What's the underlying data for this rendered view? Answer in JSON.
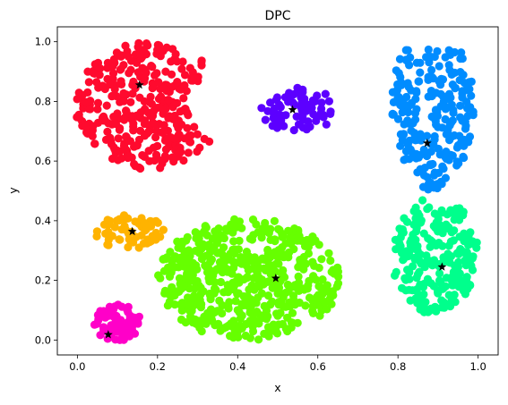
{
  "chart_data": {
    "type": "scatter",
    "title": "DPC",
    "xlabel": "x",
    "ylabel": "y",
    "xlim": [
      -0.05,
      1.05
    ],
    "ylim": [
      -0.05,
      1.05
    ],
    "x_ticks": [
      "0.0",
      "0.2",
      "0.4",
      "0.6",
      "0.8",
      "1.0"
    ],
    "y_ticks": [
      "0.0",
      "0.2",
      "0.4",
      "0.6",
      "0.8",
      "1.0"
    ],
    "grid": false,
    "legend": "none",
    "centers_marker": "black-star",
    "series": [
      {
        "color": "#ff0a2e",
        "shape": "half-disc-open-right",
        "center": [
          0.155,
          0.855
        ],
        "extent": {
          "x": [
            -0.005,
            0.375
          ],
          "y": [
            0.57,
            1.0
          ]
        },
        "count": 340
      },
      {
        "color": "#5c00ff",
        "shape": "ellipse",
        "center": [
          0.537,
          0.772
        ],
        "extent": {
          "x": [
            0.45,
            0.645
          ],
          "y": [
            0.695,
            0.85
          ]
        },
        "count": 70
      },
      {
        "color": "#008cff",
        "shape": "pear-narrowing-down",
        "center": [
          0.873,
          0.66
        ],
        "extent": {
          "x": [
            0.78,
            0.99
          ],
          "y": [
            0.5,
            0.975
          ]
        },
        "count": 230
      },
      {
        "color": "#ffb300",
        "shape": "ellipse",
        "center": [
          0.137,
          0.364
        ],
        "extent": {
          "x": [
            0.045,
            0.215
          ],
          "y": [
            0.3,
            0.43
          ]
        },
        "count": 60
      },
      {
        "color": "#66ff00",
        "shape": "ellipse",
        "center": [
          0.495,
          0.207
        ],
        "extent": {
          "x": [
            0.2,
            0.655
          ],
          "y": [
            0.0,
            0.41
          ]
        },
        "count": 540
      },
      {
        "color": "#00ff8c",
        "shape": "ellipse",
        "center": [
          0.91,
          0.245
        ],
        "extent": {
          "x": [
            0.785,
            1.0
          ],
          "y": [
            0.085,
            0.48
          ]
        },
        "count": 230
      },
      {
        "color": "#ff00c8",
        "shape": "ellipse",
        "center": [
          0.077,
          0.018
        ],
        "extent": {
          "x": [
            0.04,
            0.16
          ],
          "y": [
            -0.01,
            0.12
          ]
        },
        "count": 80
      }
    ]
  }
}
